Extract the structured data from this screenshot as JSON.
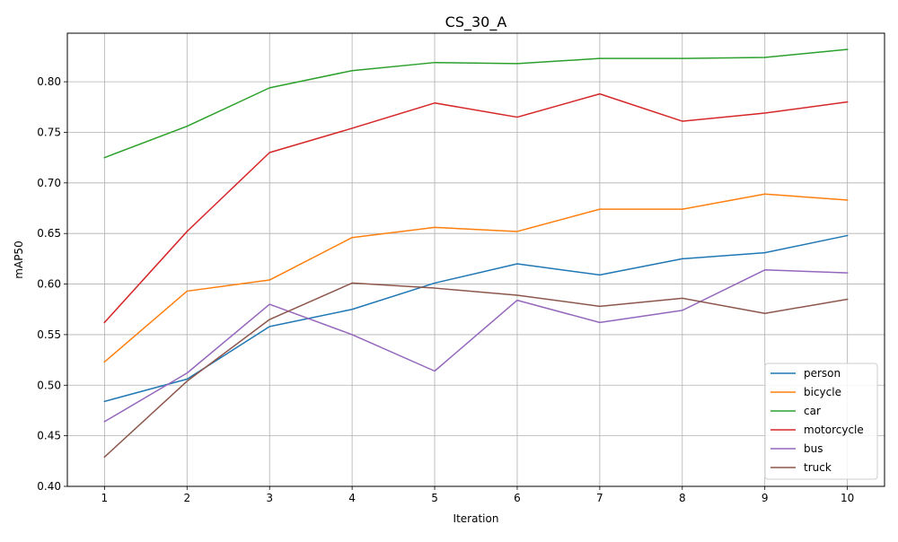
{
  "chart_data": {
    "type": "line",
    "title": "CS_30_A",
    "xlabel": "Iteration",
    "ylabel": "mAP50",
    "x": [
      1,
      2,
      3,
      4,
      5,
      6,
      7,
      8,
      9,
      10
    ],
    "xlim": [
      0.55,
      10.45
    ],
    "ylim": [
      0.4,
      0.848
    ],
    "y_ticks": [
      0.4,
      0.45,
      0.5,
      0.55,
      0.6,
      0.65,
      0.7,
      0.75,
      0.8
    ],
    "y_tick_labels": [
      "0.40",
      "0.45",
      "0.50",
      "0.55",
      "0.60",
      "0.65",
      "0.70",
      "0.75",
      "0.80"
    ],
    "x_tick_labels": [
      "1",
      "2",
      "3",
      "4",
      "5",
      "6",
      "7",
      "8",
      "9",
      "10"
    ],
    "grid": true,
    "legend_position": "lower-right",
    "series": [
      {
        "name": "person",
        "color": "#1f77b4",
        "values": [
          0.484,
          0.506,
          0.558,
          0.575,
          0.601,
          0.62,
          0.609,
          0.625,
          0.631,
          0.648
        ]
      },
      {
        "name": "bicycle",
        "color": "#ff7f0e",
        "values": [
          0.523,
          0.593,
          0.604,
          0.646,
          0.656,
          0.652,
          0.674,
          0.674,
          0.689,
          0.683
        ]
      },
      {
        "name": "car",
        "color": "#2ca02c",
        "values": [
          0.725,
          0.756,
          0.794,
          0.811,
          0.819,
          0.818,
          0.823,
          0.823,
          0.824,
          0.832
        ]
      },
      {
        "name": "motorcycle",
        "color": "#d62728",
        "values": [
          0.562,
          0.652,
          0.73,
          0.754,
          0.779,
          0.765,
          0.788,
          0.761,
          0.769,
          0.78
        ]
      },
      {
        "name": "bus",
        "color": "#9467bd",
        "values": [
          0.464,
          0.512,
          0.58,
          0.55,
          0.514,
          0.584,
          0.562,
          0.574,
          0.614,
          0.611
        ]
      },
      {
        "name": "truck",
        "color": "#8c564b",
        "values": [
          0.429,
          0.504,
          0.565,
          0.601,
          0.596,
          0.589,
          0.578,
          0.586,
          0.571,
          0.585
        ]
      }
    ]
  }
}
